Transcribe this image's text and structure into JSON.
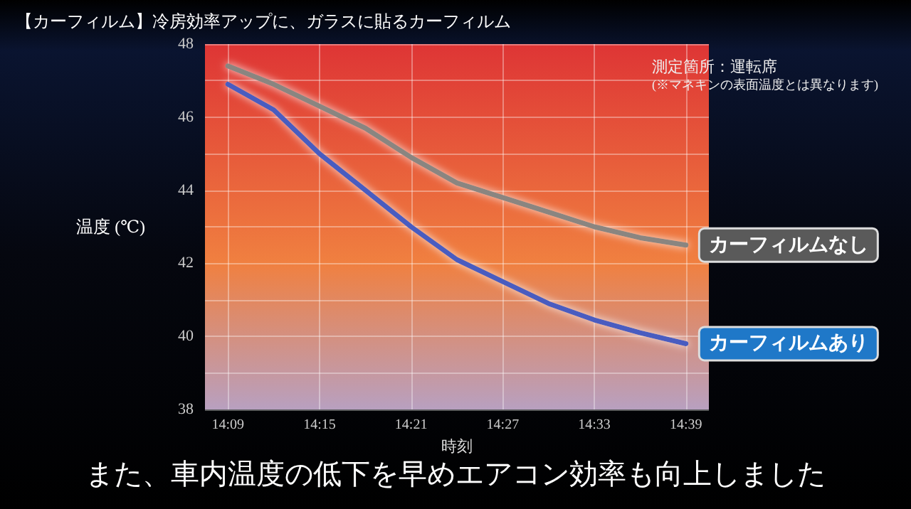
{
  "chart_data": {
    "type": "line",
    "title": "【カーフィルム】冷房効率アップに、ガラスに貼るカーフィルム",
    "subtitle": "また、車内温度の低下を早めエアコン効率も向上しました",
    "xlabel": "時刻",
    "ylabel": "温度 (℃)",
    "annotations": [
      "測定箇所：運転席",
      "(※マネキンの表面温度とは異なります)"
    ],
    "x": [
      14.15,
      14.2,
      14.25,
      14.3,
      14.35,
      14.4,
      14.45,
      14.5,
      14.55,
      14.6,
      14.65
    ],
    "series": [
      {
        "name": "カーフィルムなし",
        "color": "#8a8580",
        "values": [
          47.4,
          46.9,
          46.3,
          45.7,
          44.9,
          44.2,
          43.8,
          43.4,
          43.0,
          42.7,
          42.5
        ]
      },
      {
        "name": "カーフィルムあり",
        "color": "#4a5cc0",
        "values": [
          46.9,
          46.2,
          45.0,
          44.0,
          43.0,
          42.1,
          41.5,
          40.9,
          40.45,
          40.1,
          39.8
        ]
      }
    ],
    "xlim": [
      14.125,
      14.675
    ],
    "xticks": [
      {
        "value": 14.15,
        "label": "14:09"
      },
      {
        "value": 14.25,
        "label": "14:15"
      },
      {
        "value": 14.35,
        "label": "14:21"
      },
      {
        "value": 14.45,
        "label": "14:27"
      },
      {
        "value": 14.55,
        "label": "14:33"
      },
      {
        "value": 14.65,
        "label": "14:39"
      }
    ],
    "ylim": [
      38,
      48
    ],
    "yticks": [
      38,
      {
        "value": 39,
        "label": null
      },
      40,
      {
        "value": 41,
        "label": null
      },
      42,
      {
        "value": 43,
        "label": null
      },
      44,
      {
        "value": 45,
        "label": null
      },
      46,
      {
        "value": 47,
        "label": null
      },
      48
    ],
    "grid": true,
    "legend": false,
    "marker": "none",
    "line_style": "solid"
  }
}
